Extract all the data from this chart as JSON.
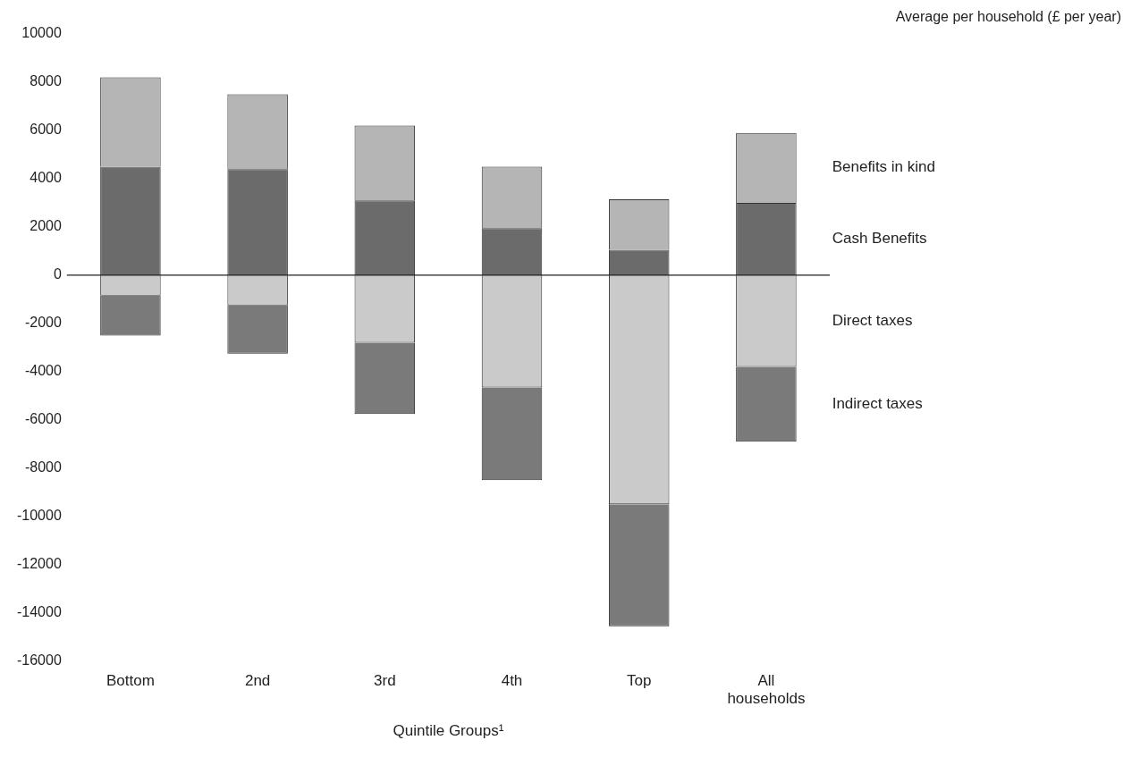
{
  "chart_data": {
    "type": "bar",
    "stacked": true,
    "ylabel": "Average per household (£ per year)",
    "xlabel": "Quintile Groups¹",
    "categories": [
      "Bottom",
      "2nd",
      "3rd",
      "4th",
      "Top",
      "All households"
    ],
    "series": [
      {
        "name": "Cash Benefits",
        "color": "#6b6b6b",
        "values": [
          4500,
          4400,
          3100,
          1950,
          1050,
          3000
        ]
      },
      {
        "name": "Benefits in kind",
        "color": "#b5b5b5",
        "values": [
          3700,
          3100,
          3100,
          2550,
          2100,
          2900
        ]
      },
      {
        "name": "Direct taxes",
        "color": "#cacaca",
        "values": [
          -850,
          -1250,
          -2800,
          -4650,
          -9500,
          -3800
        ]
      },
      {
        "name": "Indirect taxes",
        "color": "#7a7a7a",
        "values": [
          -1650,
          -2000,
          -2950,
          -3850,
          -5050,
          -3100
        ]
      }
    ],
    "ylim": [
      -16000,
      10000
    ],
    "yticks": [
      -16000,
      -14000,
      -12000,
      -10000,
      -8000,
      -6000,
      -4000,
      -2000,
      0,
      2000,
      4000,
      6000,
      8000,
      10000
    ],
    "ref_lines": [
      {
        "axis": "y",
        "value": 0,
        "color": "#222222"
      }
    ],
    "legend": false
  }
}
